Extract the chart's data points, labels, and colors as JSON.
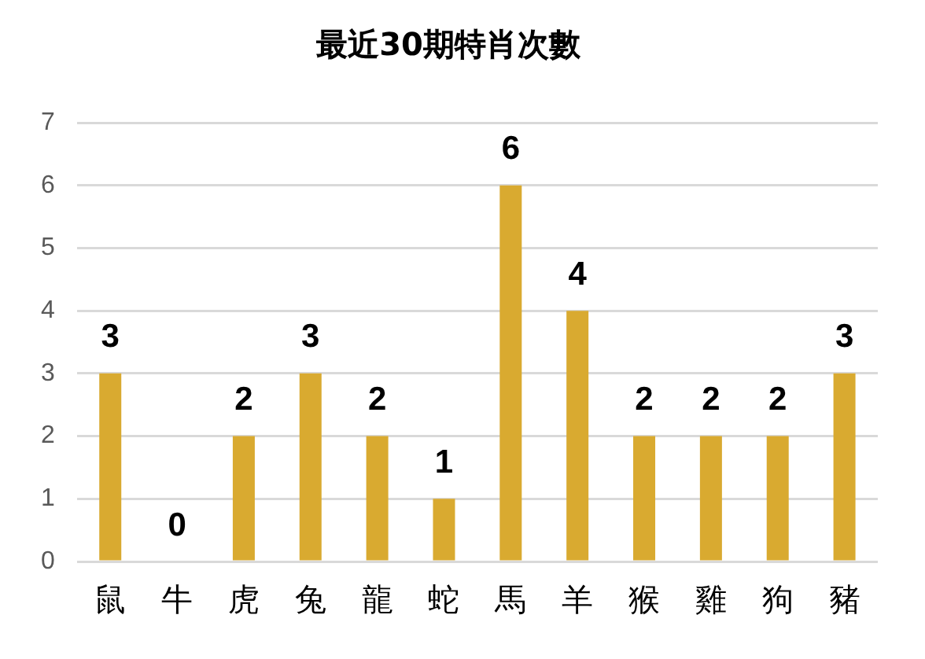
{
  "chart_data": {
    "type": "bar",
    "title": "最近30期特肖次數",
    "categories": [
      "鼠",
      "牛",
      "虎",
      "兔",
      "龍",
      "蛇",
      "馬",
      "羊",
      "猴",
      "雞",
      "狗",
      "豬"
    ],
    "values": [
      3,
      0,
      2,
      3,
      2,
      1,
      6,
      4,
      2,
      2,
      2,
      3
    ],
    "color": "#d9aa30",
    "ylim": [
      0,
      7
    ],
    "yticks": [
      0,
      1,
      2,
      3,
      4,
      5,
      6,
      7
    ],
    "grid": "y",
    "legend": false,
    "data_labels": true
  }
}
